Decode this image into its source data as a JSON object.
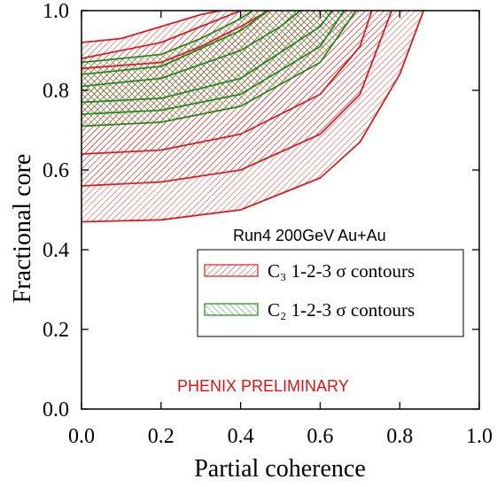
{
  "chart_data": {
    "type": "area",
    "xlabel": "Partial coherence",
    "ylabel": "Fractional core",
    "xlim": [
      0.0,
      1.0
    ],
    "ylim": [
      0.0,
      1.0
    ],
    "x_ticks": [
      "0.0",
      "0.2",
      "0.4",
      "0.6",
      "0.8",
      "1.0"
    ],
    "y_ticks": [
      "0.0",
      "0.2",
      "0.4",
      "0.6",
      "0.8",
      "1.0"
    ],
    "grid": false,
    "legend_position": "lower-right",
    "legend": [
      {
        "label": "C₃ 1-2-3 σ contours",
        "hatch": "forward-diagonal",
        "color": "#d81e1e"
      },
      {
        "label": "C₂ 1-2-3 σ contours",
        "hatch": "backward-diagonal",
        "color": "#1e8a1e"
      }
    ],
    "annotations": [
      {
        "text": "Run4 200GeV Au+Au",
        "color": "#000000"
      },
      {
        "text": "PHENIX PRELIMINARY",
        "color": "#e01010"
      }
    ],
    "series": [
      {
        "group": "C3",
        "color": "#d81e1e",
        "sigma": 3,
        "lower": [
          [
            0.0,
            0.47
          ],
          [
            0.2,
            0.475
          ],
          [
            0.4,
            0.5
          ],
          [
            0.6,
            0.58
          ],
          [
            0.7,
            0.67
          ],
          [
            0.8,
            0.84
          ],
          [
            0.86,
            1.0
          ]
        ],
        "upper": [
          [
            0.0,
            0.92
          ],
          [
            0.1,
            0.93
          ],
          [
            0.2,
            0.96
          ],
          [
            0.3,
            0.99
          ],
          [
            0.35,
            1.0
          ]
        ]
      },
      {
        "group": "C3",
        "color": "#d81e1e",
        "sigma": 2,
        "lower": [
          [
            0.0,
            0.56
          ],
          [
            0.2,
            0.57
          ],
          [
            0.4,
            0.6
          ],
          [
            0.6,
            0.69
          ],
          [
            0.7,
            0.79
          ],
          [
            0.78,
            1.0
          ]
        ],
        "upper": [
          [
            0.0,
            0.88
          ],
          [
            0.2,
            0.92
          ],
          [
            0.3,
            0.96
          ],
          [
            0.4,
            1.0
          ]
        ]
      },
      {
        "group": "C3",
        "color": "#d81e1e",
        "sigma": 1,
        "lower": [
          [
            0.0,
            0.64
          ],
          [
            0.2,
            0.65
          ],
          [
            0.4,
            0.69
          ],
          [
            0.6,
            0.79
          ],
          [
            0.7,
            0.91
          ],
          [
            0.73,
            1.0
          ]
        ],
        "upper": [
          [
            0.0,
            0.855
          ],
          [
            0.2,
            0.87
          ],
          [
            0.3,
            0.91
          ],
          [
            0.4,
            0.96
          ],
          [
            0.47,
            1.0
          ]
        ]
      },
      {
        "group": "C2",
        "color": "#1e8a1e",
        "sigma": 3,
        "lower": [
          [
            0.0,
            0.71
          ],
          [
            0.2,
            0.72
          ],
          [
            0.4,
            0.76
          ],
          [
            0.6,
            0.87
          ],
          [
            0.69,
            1.0
          ]
        ],
        "upper": [
          [
            0.0,
            0.87
          ],
          [
            0.2,
            0.89
          ],
          [
            0.3,
            0.93
          ],
          [
            0.4,
            0.98
          ],
          [
            0.43,
            1.0
          ]
        ]
      },
      {
        "group": "C2",
        "color": "#1e8a1e",
        "sigma": 2,
        "lower": [
          [
            0.0,
            0.74
          ],
          [
            0.2,
            0.75
          ],
          [
            0.4,
            0.79
          ],
          [
            0.6,
            0.91
          ],
          [
            0.66,
            1.0
          ]
        ],
        "upper": [
          [
            0.0,
            0.84
          ],
          [
            0.2,
            0.86
          ],
          [
            0.4,
            0.95
          ],
          [
            0.47,
            1.0
          ]
        ]
      },
      {
        "group": "C2",
        "color": "#1e8a1e",
        "sigma": 1,
        "lower": [
          [
            0.0,
            0.77
          ],
          [
            0.2,
            0.78
          ],
          [
            0.4,
            0.83
          ],
          [
            0.6,
            0.96
          ],
          [
            0.63,
            1.0
          ]
        ],
        "upper": [
          [
            0.0,
            0.81
          ],
          [
            0.2,
            0.83
          ],
          [
            0.4,
            0.9
          ],
          [
            0.5,
            0.96
          ],
          [
            0.55,
            1.0
          ]
        ]
      }
    ]
  }
}
